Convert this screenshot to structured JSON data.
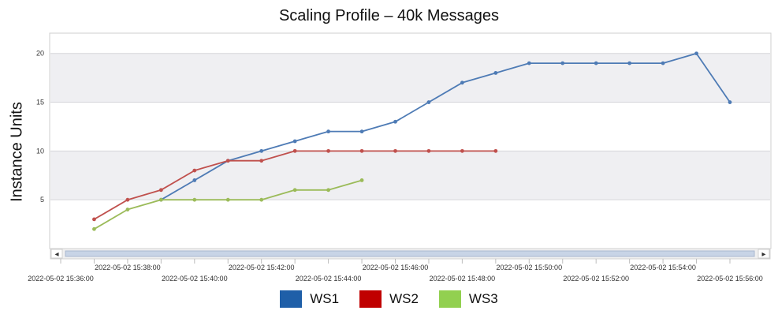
{
  "chart_data": {
    "type": "line",
    "title": "Scaling Profile – 40k Messages",
    "ylabel": "Instance Units",
    "xlabel": "",
    "ylim": [
      0,
      22
    ],
    "yticks": [
      5,
      10,
      15,
      20
    ],
    "grid": true,
    "legend_position": "bottom-center",
    "x_tick_labels": [
      "2022-05-02 15:36:00",
      "2022-05-02 15:38:00",
      "2022-05-02 15:40:00",
      "2022-05-02 15:42:00",
      "2022-05-02 15:44:00",
      "2022-05-02 15:46:00",
      "2022-05-02 15:48:00",
      "2022-05-02 15:50:00",
      "2022-05-02 15:52:00",
      "2022-05-02 15:54:00",
      "2022-05-02 15:56:00"
    ],
    "x_points": [
      "15:37:00",
      "15:38:00",
      "15:39:00",
      "15:40:00",
      "15:41:00",
      "15:42:00",
      "15:43:00",
      "15:44:00",
      "15:45:00",
      "15:46:00",
      "15:47:00",
      "15:48:00",
      "15:49:00",
      "15:50:00",
      "15:51:00",
      "15:52:00",
      "15:53:00",
      "15:54:00",
      "15:55:00",
      "15:56:00"
    ],
    "series": [
      {
        "name": "WS1",
        "color": "#4E7BB5",
        "values": [
          null,
          null,
          5,
          7,
          9,
          10,
          11,
          12,
          12,
          13,
          15,
          17,
          18,
          19,
          19,
          19,
          19,
          19,
          20,
          15
        ]
      },
      {
        "name": "WS2",
        "color": "#C0504D",
        "values": [
          3,
          5,
          6,
          8,
          9,
          9,
          10,
          10,
          10,
          10,
          10,
          10,
          10,
          null,
          null,
          null,
          null,
          null,
          null,
          null
        ]
      },
      {
        "name": "WS3",
        "color": "#9BBB59",
        "values": [
          2,
          4,
          5,
          5,
          5,
          5,
          6,
          6,
          7,
          null,
          null,
          null,
          null,
          null,
          null,
          null,
          null,
          null,
          null,
          null
        ]
      }
    ]
  },
  "legend": [
    {
      "label": "WS1",
      "color": "#1F5FA8"
    },
    {
      "label": "WS2",
      "color": "#C00000"
    },
    {
      "label": "WS3",
      "color": "#92D050"
    }
  ],
  "scrollbar": {
    "left_arrow": "◂",
    "right_arrow": "▸"
  }
}
